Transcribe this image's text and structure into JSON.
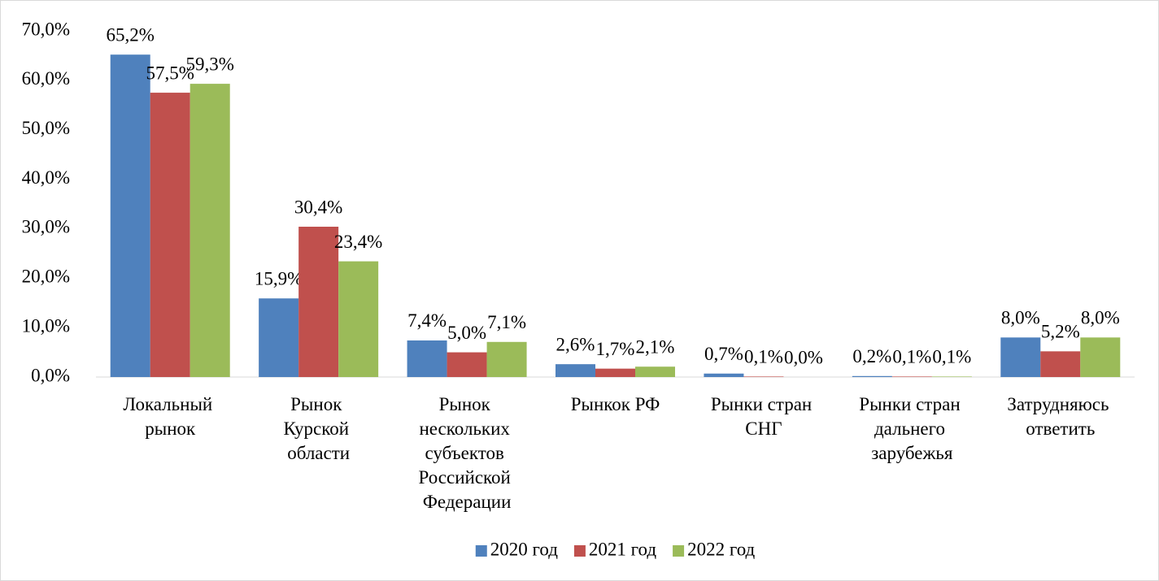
{
  "chart_data": {
    "type": "bar",
    "categories": [
      "Локальный рынок",
      "Рынок Курской области",
      "Рынок нескольких субъектов Российской Федерации",
      "Рынкок РФ",
      "Рынки стран СНГ",
      "Рынки стран дальнего зарубежья",
      "Затрудняюсь ответить"
    ],
    "series": [
      {
        "name": "2020 год",
        "color": "#4f81bd",
        "values": [
          65.2,
          15.9,
          7.4,
          2.6,
          0.7,
          0.2,
          8.0
        ],
        "value_labels": [
          "65,2%",
          "15,9%",
          "7,4%",
          "2,6%",
          "0,7%",
          "0,2%",
          "8,0%"
        ]
      },
      {
        "name": "2021 год",
        "color": "#c0504d",
        "values": [
          57.5,
          30.4,
          5.0,
          1.7,
          0.1,
          0.1,
          5.2
        ],
        "value_labels": [
          "57,5%",
          "30,4%",
          "5,0%",
          "1,7%",
          "0,1%",
          "0,1%",
          "5,2%"
        ]
      },
      {
        "name": "2022 год",
        "color": "#9bbb59",
        "values": [
          59.3,
          23.4,
          7.1,
          2.1,
          0.0,
          0.1,
          8.0
        ],
        "value_labels": [
          "59,3%",
          "23,4%",
          "7,1%",
          "2,1%",
          "0,0%",
          "0,1%",
          "8,0%"
        ]
      }
    ],
    "ylim": [
      0,
      70
    ],
    "yticks": [
      {
        "value": 0,
        "label": "0,0%"
      },
      {
        "value": 10,
        "label": "10,0%"
      },
      {
        "value": 20,
        "label": "20,0%"
      },
      {
        "value": 30,
        "label": "30,0%"
      },
      {
        "value": 40,
        "label": "40,0%"
      },
      {
        "value": 50,
        "label": "50,0%"
      },
      {
        "value": 60,
        "label": "60,0%"
      },
      {
        "value": 70,
        "label": "70,0%"
      }
    ],
    "legend": "bottom"
  }
}
